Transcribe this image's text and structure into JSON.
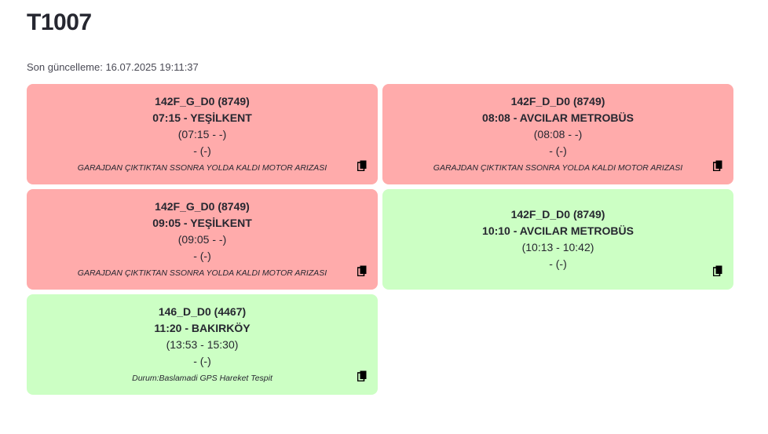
{
  "header": {
    "title": "T1007",
    "last_updated": "Son güncelleme: 16.07.2025 19:11:37"
  },
  "cards": [
    {
      "status": "red",
      "route": "142F_G_D0 (8749)",
      "departure": "07:15 - YEŞİLKENT",
      "actual": "(07:15 - -)",
      "extra": "- (-)",
      "note": "GARAJDAN ÇIKTIKTAN SSONRA YOLDA KALDI MOTOR ARIZASI"
    },
    {
      "status": "red",
      "route": "142F_D_D0 (8749)",
      "departure": "08:08 - AVCILAR METROBÜS",
      "actual": "(08:08 - -)",
      "extra": "- (-)",
      "note": "GARAJDAN ÇIKTIKTAN SSONRA YOLDA KALDI MOTOR ARIZASI"
    },
    {
      "status": "red",
      "route": "142F_G_D0 (8749)",
      "departure": "09:05 - YEŞİLKENT",
      "actual": "(09:05 - -)",
      "extra": "- (-)",
      "note": "GARAJDAN ÇIKTIKTAN SSONRA YOLDA KALDI MOTOR ARIZASI"
    },
    {
      "status": "green",
      "route": "142F_D_D0 (8749)",
      "departure": "10:10 - AVCILAR METROBÜS",
      "actual": "(10:13 - 10:42)",
      "extra": "- (-)",
      "note": ""
    },
    {
      "status": "green",
      "route": "146_D_D0 (4467)",
      "departure": "11:20 - BAKIRKÖY",
      "actual": "(13:53 - 15:30)",
      "extra": "- (-)",
      "note": "Durum:Baslamadi GPS Hareket Tespit"
    }
  ],
  "colors": {
    "red_card": "#ffabab",
    "green_card": "#ccffc4",
    "text": "#262730"
  },
  "icons": {
    "copy": "copy-icon"
  }
}
